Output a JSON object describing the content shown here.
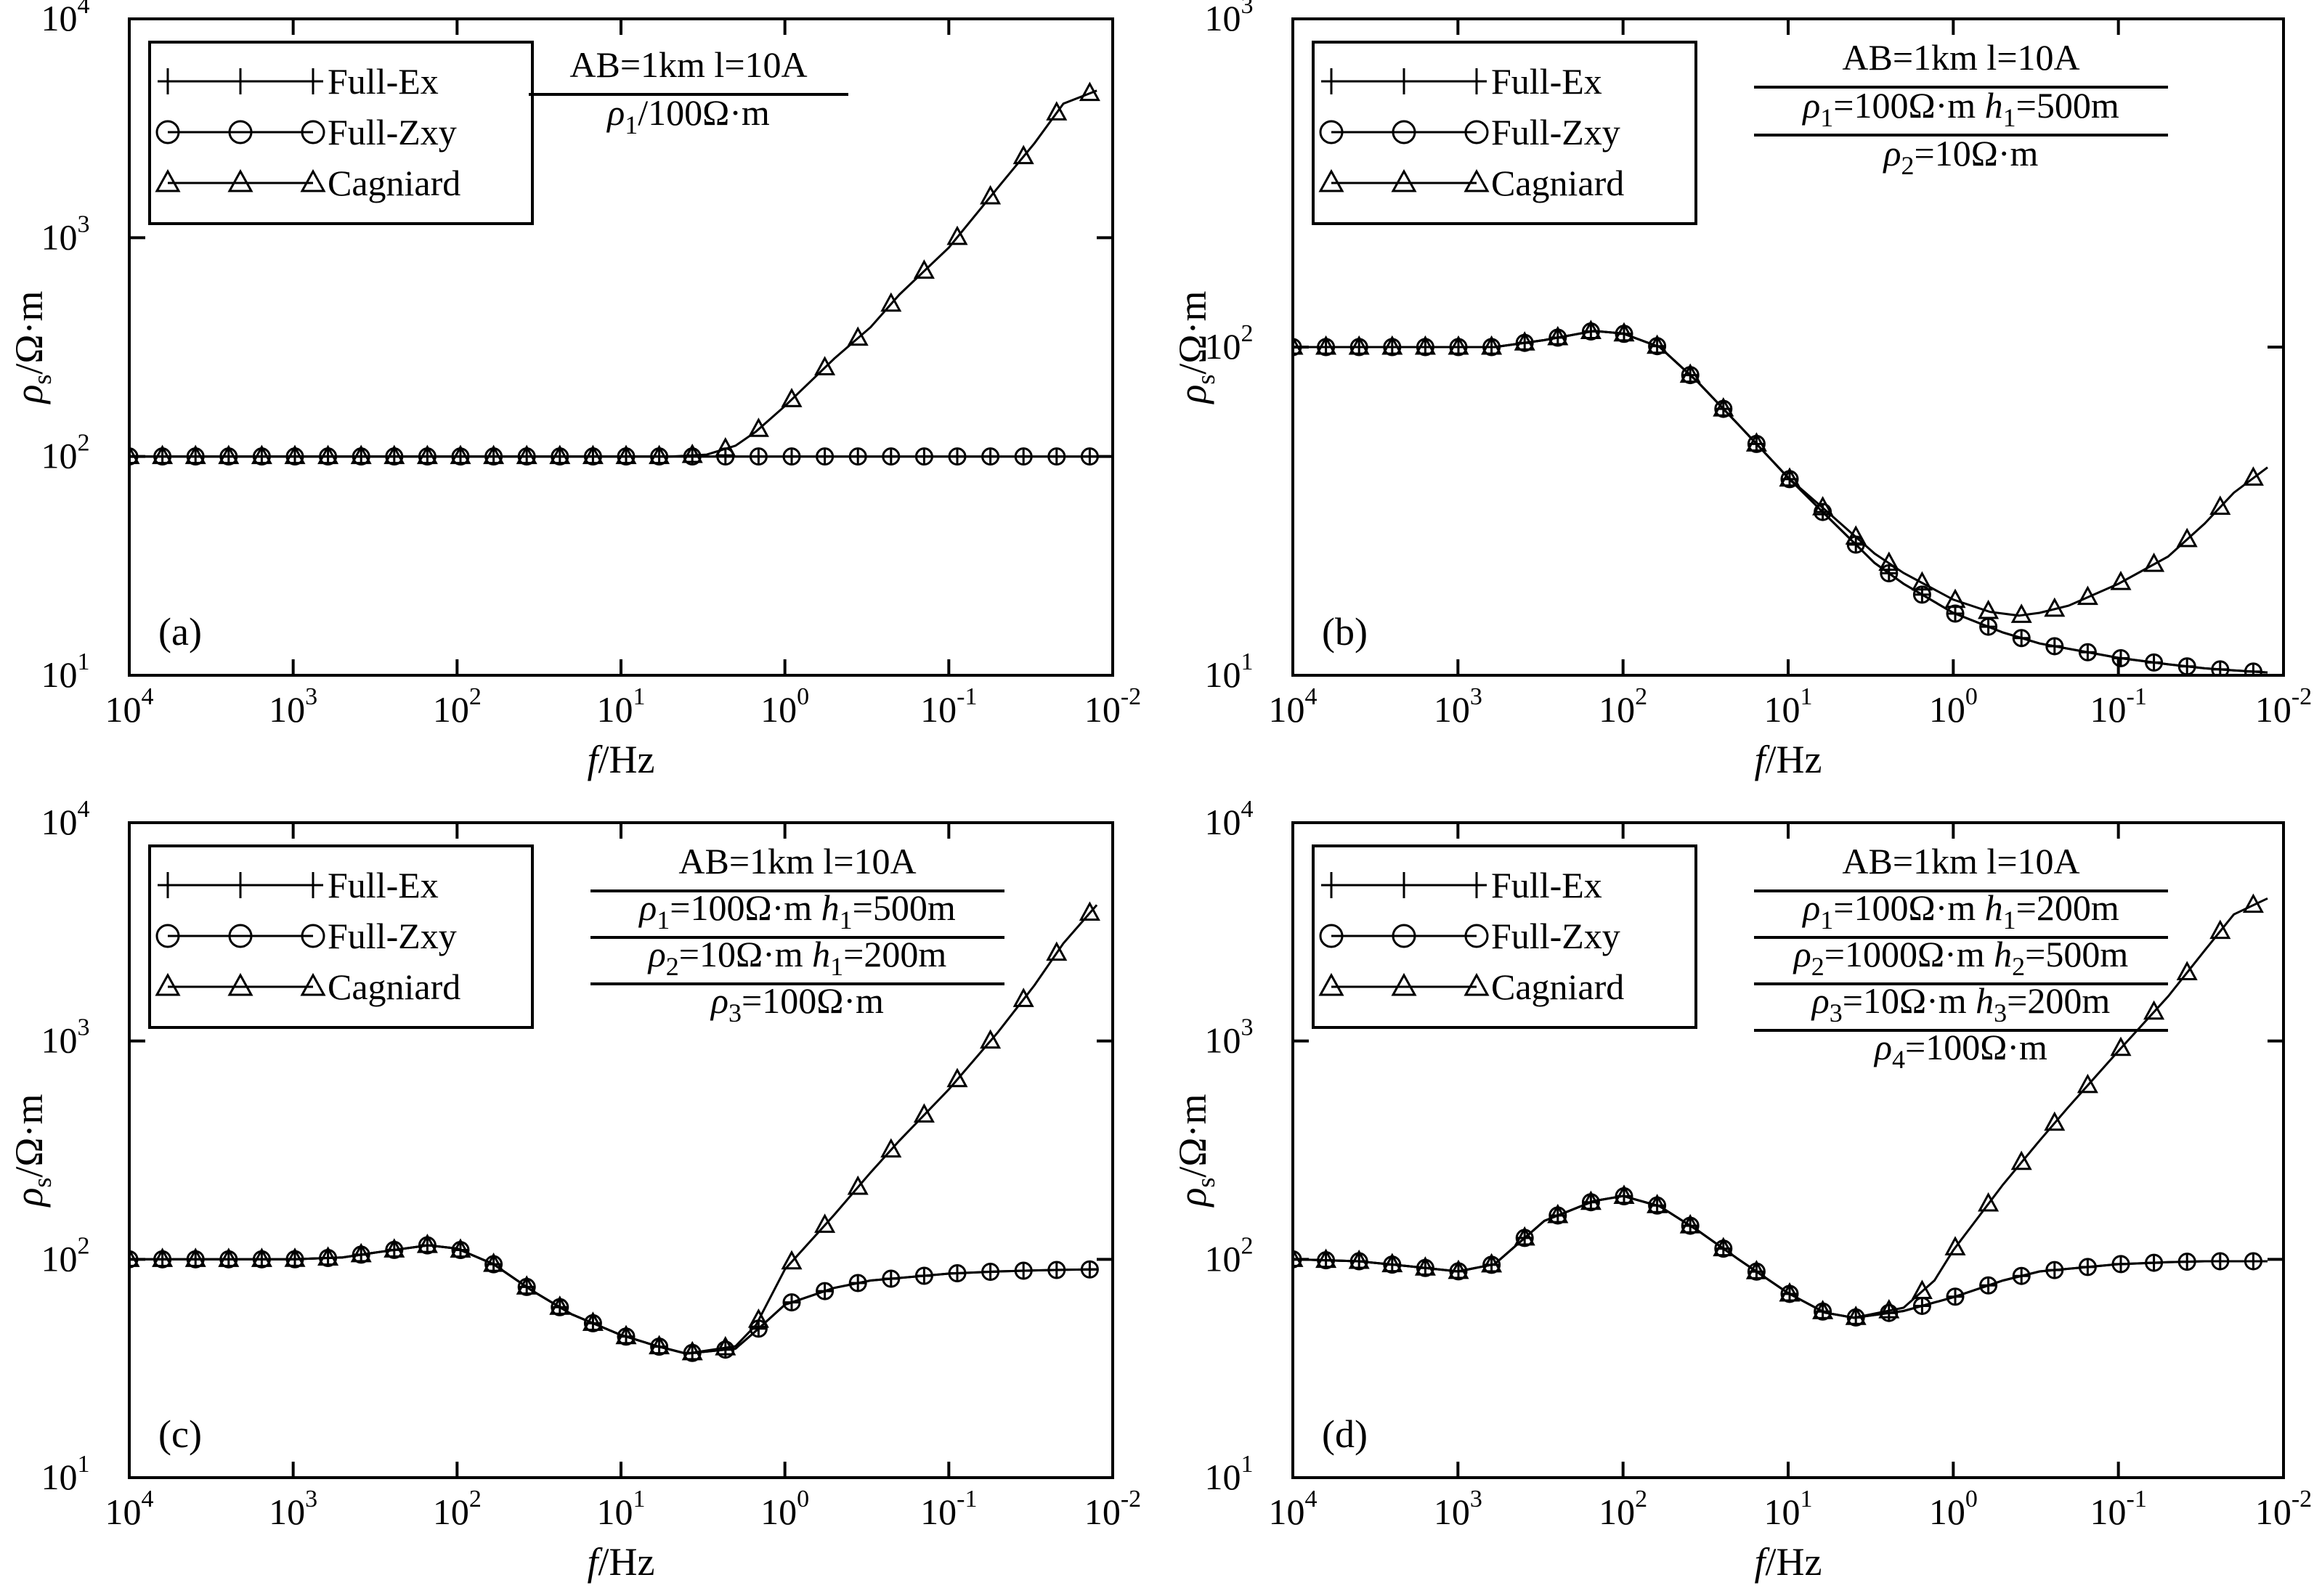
{
  "figure": {
    "ylabel_main": "ρ",
    "ylabel_sub": "s",
    "ylabel_unit": "/Ω·m",
    "xlabel_var": "f",
    "xlabel_unit": "/Hz",
    "x_ticks": [
      {
        "base": "10",
        "exp": "4",
        "value": 10000
      },
      {
        "base": "10",
        "exp": "3",
        "value": 1000
      },
      {
        "base": "10",
        "exp": "2",
        "value": 100
      },
      {
        "base": "10",
        "exp": "1",
        "value": 10
      },
      {
        "base": "10",
        "exp": "0",
        "value": 1
      },
      {
        "base": "10",
        "exp": "-1",
        "value": 0.1
      },
      {
        "base": "10",
        "exp": "-2",
        "value": 0.01
      }
    ],
    "legend": [
      {
        "label": "Full-Ex",
        "marker": "plus-marker"
      },
      {
        "label": "Full-Zxy",
        "marker": "circle-marker"
      },
      {
        "label": "Cagniard",
        "marker": "triangle-marker"
      }
    ]
  },
  "chart_data": [
    {
      "type": "line",
      "panel_label": "(a)",
      "xscale": "log",
      "yscale": "log",
      "x_reversed": true,
      "xlim": [
        10000,
        0.01
      ],
      "ylim": [
        10,
        10000
      ],
      "y_ticks": [
        {
          "base": "10",
          "exp": "1"
        },
        {
          "base": "10",
          "exp": "2"
        },
        {
          "base": "10",
          "exp": "3"
        },
        {
          "base": "10",
          "exp": "4"
        }
      ],
      "model": [
        {
          "segments": [
            {
              "text": "AB=1km l=10A"
            }
          ]
        },
        {
          "segments": [
            {
              "text": "ρ",
              "italic": true
            },
            {
              "text": "1",
              "sub": true
            },
            {
              "text": "/100Ω·m"
            }
          ]
        }
      ],
      "series": [
        {
          "name": "Full-Ex",
          "x": [
            10000,
            1000,
            100,
            10,
            1,
            0.1,
            0.01
          ],
          "y": [
            100,
            100,
            100,
            100,
            100,
            100,
            100
          ]
        },
        {
          "name": "Full-Zxy",
          "x": [
            10000,
            1000,
            100,
            10,
            1,
            0.1,
            0.01
          ],
          "y": [
            100,
            100,
            100,
            100,
            100,
            100,
            100
          ]
        },
        {
          "name": "Cagniard",
          "x": [
            10000,
            1000,
            100,
            10,
            5,
            3,
            2,
            1.5,
            1,
            0.5,
            0.3,
            0.2,
            0.1,
            0.05,
            0.03,
            0.02,
            0.0125
          ],
          "y": [
            100,
            100,
            100,
            100,
            100,
            102,
            112,
            130,
            170,
            280,
            390,
            550,
            900,
            1700,
            2700,
            4100,
            4700
          ]
        }
      ]
    },
    {
      "type": "line",
      "panel_label": "(b)",
      "xscale": "log",
      "yscale": "log",
      "x_reversed": true,
      "xlim": [
        10000,
        0.01
      ],
      "ylim": [
        10,
        1000
      ],
      "y_ticks": [
        {
          "base": "10",
          "exp": "1"
        },
        {
          "base": "10",
          "exp": "2"
        },
        {
          "base": "10",
          "exp": "3"
        }
      ],
      "model": [
        {
          "segments": [
            {
              "text": "AB=1km l=10A"
            }
          ]
        },
        {
          "segments": [
            {
              "text": "ρ",
              "italic": true
            },
            {
              "text": "1",
              "sub": true
            },
            {
              "text": "=100Ω·m  "
            },
            {
              "text": "h",
              "italic": true
            },
            {
              "text": "1",
              "sub": true
            },
            {
              "text": "=500m"
            }
          ]
        },
        {
          "segments": [
            {
              "text": "ρ",
              "italic": true
            },
            {
              "text": "2",
              "sub": true
            },
            {
              "text": "=10Ω·m"
            }
          ]
        }
      ],
      "series": [
        {
          "name": "Full-Ex",
          "x": [
            10000,
            3000,
            1000,
            600,
            300,
            150,
            100,
            60,
            35,
            20,
            10,
            6,
            3,
            2,
            1,
            0.5,
            0.3,
            0.1,
            0.05,
            0.03,
            0.02,
            0.0125
          ],
          "y": [
            100,
            100,
            100,
            100,
            105,
            112,
            110,
            100,
            78,
            58,
            40,
            31,
            22,
            19,
            15.5,
            13.5,
            12.5,
            11.3,
            10.8,
            10.5,
            10.35,
            10.2
          ]
        },
        {
          "name": "Full-Zxy",
          "x": [
            10000,
            3000,
            1000,
            600,
            300,
            150,
            100,
            60,
            35,
            20,
            10,
            6,
            3,
            2,
            1,
            0.5,
            0.3,
            0.1,
            0.05,
            0.03,
            0.02,
            0.0125
          ],
          "y": [
            100,
            100,
            100,
            100,
            105,
            112,
            110,
            100,
            78,
            58,
            40,
            31,
            22,
            19,
            15.5,
            13.5,
            12.5,
            11.3,
            10.8,
            10.5,
            10.35,
            10.2
          ]
        },
        {
          "name": "Cagniard",
          "x": [
            10000,
            3000,
            1000,
            600,
            300,
            150,
            100,
            60,
            35,
            20,
            10,
            6,
            3,
            2,
            1,
            0.6,
            0.4,
            0.3,
            0.2,
            0.1,
            0.05,
            0.03,
            0.02,
            0.0125
          ],
          "y": [
            100,
            100,
            100,
            100,
            105,
            112,
            110,
            100,
            78,
            58,
            40,
            32,
            23.5,
            20.5,
            17,
            15.6,
            15.2,
            15.5,
            16.3,
            19,
            23,
            29,
            36,
            43
          ]
        }
      ]
    },
    {
      "type": "line",
      "panel_label": "(c)",
      "xscale": "log",
      "yscale": "log",
      "x_reversed": true,
      "xlim": [
        10000,
        0.01
      ],
      "ylim": [
        10,
        10000
      ],
      "y_ticks": [
        {
          "base": "10",
          "exp": "1"
        },
        {
          "base": "10",
          "exp": "2"
        },
        {
          "base": "10",
          "exp": "3"
        },
        {
          "base": "10",
          "exp": "4"
        }
      ],
      "model": [
        {
          "segments": [
            {
              "text": "AB=1km l=10A"
            }
          ]
        },
        {
          "segments": [
            {
              "text": "ρ",
              "italic": true
            },
            {
              "text": "1",
              "sub": true
            },
            {
              "text": "=100Ω·m  "
            },
            {
              "text": "h",
              "italic": true
            },
            {
              "text": "1",
              "sub": true
            },
            {
              "text": "=500m"
            }
          ]
        },
        {
          "segments": [
            {
              "text": "ρ",
              "italic": true
            },
            {
              "text": "2",
              "sub": true
            },
            {
              "text": "=10Ω·m  "
            },
            {
              "text": "h",
              "italic": true
            },
            {
              "text": "1",
              "sub": true
            },
            {
              "text": "=200m"
            }
          ]
        },
        {
          "segments": [
            {
              "text": "ρ",
              "italic": true
            },
            {
              "text": "3",
              "sub": true
            },
            {
              "text": "=100Ω·m"
            }
          ]
        }
      ],
      "series": [
        {
          "name": "Full-Ex",
          "x": [
            10000,
            3000,
            1000,
            500,
            300,
            150,
            100,
            60,
            35,
            20,
            10,
            6,
            4,
            2,
            1.5,
            1,
            0.5,
            0.3,
            0.1,
            0.05,
            0.03,
            0.02,
            0.0125
          ],
          "y": [
            100,
            100,
            100,
            102,
            108,
            116,
            112,
            95,
            72,
            56,
            45,
            40,
            37,
            39,
            47,
            62,
            74,
            80,
            86,
            88,
            89,
            89.5,
            90
          ]
        },
        {
          "name": "Full-Zxy",
          "x": [
            10000,
            3000,
            1000,
            500,
            300,
            150,
            100,
            60,
            35,
            20,
            10,
            6,
            4,
            2,
            1.5,
            1,
            0.5,
            0.3,
            0.1,
            0.05,
            0.03,
            0.02,
            0.0125
          ],
          "y": [
            100,
            100,
            100,
            102,
            108,
            116,
            112,
            95,
            72,
            56,
            45,
            40,
            37,
            39,
            47,
            62,
            74,
            80,
            86,
            88,
            89,
            89.5,
            90
          ]
        },
        {
          "name": "Cagniard",
          "x": [
            10000,
            3000,
            1000,
            500,
            300,
            150,
            100,
            60,
            35,
            20,
            10,
            6,
            4,
            2,
            1.5,
            1,
            0.5,
            0.3,
            0.2,
            0.1,
            0.05,
            0.03,
            0.02,
            0.0125
          ],
          "y": [
            100,
            100,
            100,
            102,
            108,
            116,
            112,
            95,
            72,
            56,
            45,
            40,
            37,
            40,
            50,
            90,
            160,
            250,
            350,
            600,
            1100,
            1800,
            2800,
            4200
          ]
        }
      ]
    },
    {
      "type": "line",
      "panel_label": "(d)",
      "xscale": "log",
      "yscale": "log",
      "x_reversed": true,
      "xlim": [
        10000,
        0.01
      ],
      "ylim": [
        10,
        10000
      ],
      "y_ticks": [
        {
          "base": "10",
          "exp": "1"
        },
        {
          "base": "10",
          "exp": "2"
        },
        {
          "base": "10",
          "exp": "3"
        },
        {
          "base": "10",
          "exp": "4"
        }
      ],
      "model": [
        {
          "segments": [
            {
              "text": "AB=1km l=10A"
            }
          ]
        },
        {
          "segments": [
            {
              "text": "ρ",
              "italic": true
            },
            {
              "text": "1",
              "sub": true
            },
            {
              "text": "=100Ω·m  "
            },
            {
              "text": "h",
              "italic": true
            },
            {
              "text": "1",
              "sub": true
            },
            {
              "text": "=200m"
            }
          ]
        },
        {
          "segments": [
            {
              "text": "ρ",
              "italic": true
            },
            {
              "text": "2",
              "sub": true
            },
            {
              "text": "=1000Ω·m  "
            },
            {
              "text": "h",
              "italic": true
            },
            {
              "text": "2",
              "sub": true
            },
            {
              "text": "=500m"
            }
          ]
        },
        {
          "segments": [
            {
              "text": "ρ",
              "italic": true
            },
            {
              "text": "3",
              "sub": true
            },
            {
              "text": "=10Ω·m  "
            },
            {
              "text": "h",
              "italic": true
            },
            {
              "text": "3",
              "sub": true
            },
            {
              "text": "=200m"
            }
          ]
        },
        {
          "segments": [
            {
              "text": "ρ",
              "italic": true
            },
            {
              "text": "4",
              "sub": true
            },
            {
              "text": "=100Ω·m"
            }
          ]
        }
      ],
      "series": [
        {
          "name": "Full-Ex",
          "x": [
            10000,
            4000,
            2000,
            1000,
            600,
            300,
            150,
            100,
            60,
            35,
            20,
            10,
            6,
            4,
            2,
            1,
            0.5,
            0.3,
            0.1,
            0.05,
            0.03,
            0.02,
            0.0125
          ],
          "y": [
            100,
            98,
            93,
            88,
            95,
            150,
            185,
            195,
            175,
            135,
            100,
            70,
            57,
            54,
            58,
            67,
            80,
            88,
            95,
            97,
            98,
            98,
            98
          ]
        },
        {
          "name": "Full-Zxy",
          "x": [
            10000,
            4000,
            2000,
            1000,
            600,
            300,
            150,
            100,
            60,
            35,
            20,
            10,
            6,
            4,
            2,
            1,
            0.5,
            0.3,
            0.1,
            0.05,
            0.03,
            0.02,
            0.0125
          ],
          "y": [
            100,
            98,
            93,
            88,
            95,
            150,
            185,
            195,
            175,
            135,
            100,
            70,
            57,
            54,
            58,
            67,
            80,
            88,
            95,
            97,
            98,
            98,
            98
          ]
        },
        {
          "name": "Cagniard",
          "x": [
            10000,
            4000,
            2000,
            1000,
            600,
            300,
            150,
            100,
            60,
            35,
            20,
            10,
            6,
            4,
            2,
            1.3,
            1,
            0.5,
            0.3,
            0.2,
            0.1,
            0.05,
            0.03,
            0.02,
            0.0125
          ],
          "y": [
            100,
            98,
            93,
            88,
            95,
            150,
            185,
            195,
            175,
            135,
            100,
            70,
            57,
            54,
            60,
            80,
            110,
            220,
            350,
            500,
            900,
            1600,
            2600,
            3800,
            4500
          ]
        }
      ]
    }
  ]
}
